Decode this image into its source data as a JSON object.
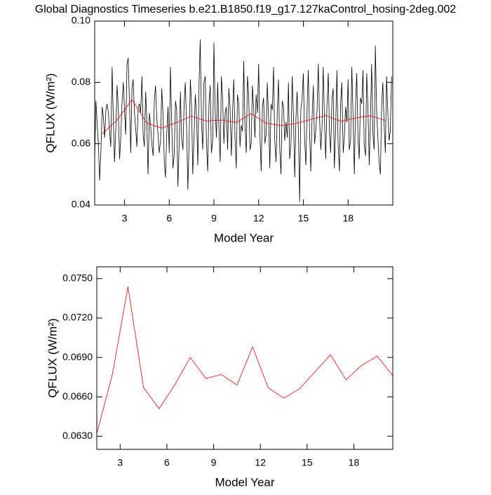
{
  "title": "Global Diagnostics Timeseries b.e21.B1850.f19_g17.127kaControl_hosing-2deg.002",
  "chart_data": [
    {
      "type": "line",
      "xlabel": "Model Year",
      "ylabel": "QFLUX (W/m²)",
      "xlim": [
        1,
        21
      ],
      "xticks": [
        3,
        6,
        9,
        12,
        15,
        18
      ],
      "ylim": [
        0.04,
        0.1
      ],
      "yticks": [
        0.04,
        0.06,
        0.08,
        {
          "value": 0.1,
          "label": "0.10"
        }
      ],
      "series": [
        {
          "color": "#000000",
          "x": [
            1.0,
            1.08,
            1.17,
            1.25,
            1.33,
            1.42,
            1.5,
            1.58,
            1.67,
            1.75,
            1.83,
            1.92,
            2.0,
            2.08,
            2.17,
            2.25,
            2.33,
            2.42,
            2.5,
            2.58,
            2.67,
            2.75,
            2.83,
            2.92,
            3.0,
            3.08,
            3.17,
            3.25,
            3.33,
            3.42,
            3.5,
            3.58,
            3.67,
            3.75,
            3.83,
            3.92,
            4.0,
            4.08,
            4.17,
            4.25,
            4.33,
            4.42,
            4.5,
            4.58,
            4.67,
            4.75,
            4.83,
            4.92,
            5.0,
            5.08,
            5.17,
            5.25,
            5.33,
            5.42,
            5.5,
            5.58,
            5.67,
            5.75,
            5.83,
            5.92,
            6.0,
            6.08,
            6.17,
            6.25,
            6.33,
            6.42,
            6.5,
            6.58,
            6.67,
            6.75,
            6.83,
            6.92,
            7.0,
            7.08,
            7.17,
            7.25,
            7.33,
            7.42,
            7.5,
            7.58,
            7.67,
            7.75,
            7.83,
            7.92,
            8.0,
            8.08,
            8.17,
            8.25,
            8.33,
            8.42,
            8.5,
            8.58,
            8.67,
            8.75,
            8.83,
            8.92,
            9.0,
            9.08,
            9.17,
            9.25,
            9.33,
            9.42,
            9.5,
            9.58,
            9.67,
            9.75,
            9.83,
            9.92,
            10.0,
            10.08,
            10.17,
            10.25,
            10.33,
            10.42,
            10.5,
            10.58,
            10.67,
            10.75,
            10.83,
            10.92,
            11.0,
            11.08,
            11.17,
            11.25,
            11.33,
            11.42,
            11.5,
            11.58,
            11.67,
            11.75,
            11.83,
            11.92,
            12.0,
            12.08,
            12.17,
            12.25,
            12.33,
            12.42,
            12.5,
            12.58,
            12.67,
            12.75,
            12.83,
            12.92,
            13.0,
            13.08,
            13.17,
            13.25,
            13.33,
            13.42,
            13.5,
            13.58,
            13.67,
            13.75,
            13.83,
            13.92,
            14.0,
            14.08,
            14.17,
            14.25,
            14.33,
            14.42,
            14.5,
            14.58,
            14.67,
            14.75,
            14.83,
            14.92,
            15.0,
            15.08,
            15.17,
            15.25,
            15.33,
            15.42,
            15.5,
            15.58,
            15.67,
            15.75,
            15.83,
            15.92,
            16.0,
            16.08,
            16.17,
            16.25,
            16.33,
            16.42,
            16.5,
            16.58,
            16.67,
            16.75,
            16.83,
            16.92,
            17.0,
            17.08,
            17.17,
            17.25,
            17.33,
            17.42,
            17.5,
            17.58,
            17.67,
            17.75,
            17.83,
            17.92,
            18.0,
            18.08,
            18.17,
            18.25,
            18.33,
            18.42,
            18.5,
            18.58,
            18.67,
            18.75,
            18.83,
            18.92,
            19.0,
            19.08,
            19.17,
            19.25,
            19.33,
            19.42,
            19.5,
            19.58,
            19.67,
            19.75,
            19.83,
            19.92,
            20.0,
            20.08,
            20.17,
            20.25,
            20.33,
            20.42,
            20.5,
            20.58,
            20.67,
            20.75,
            20.83,
            20.92
          ],
          "values": [
            0.055,
            0.074,
            0.066,
            0.06,
            0.048,
            0.058,
            0.072,
            0.069,
            0.062,
            0.071,
            0.073,
            0.07,
            0.064,
            0.059,
            0.085,
            0.068,
            0.054,
            0.065,
            0.079,
            0.072,
            0.055,
            0.062,
            0.073,
            0.08,
            0.071,
            0.063,
            0.086,
            0.088,
            0.074,
            0.057,
            0.078,
            0.081,
            0.07,
            0.065,
            0.059,
            0.072,
            0.073,
            0.07,
            0.082,
            0.063,
            0.059,
            0.077,
            0.067,
            0.05,
            0.07,
            0.066,
            0.06,
            0.056,
            0.074,
            0.079,
            0.068,
            0.063,
            0.057,
            0.061,
            0.078,
            0.07,
            0.054,
            0.049,
            0.063,
            0.072,
            0.057,
            0.085,
            0.066,
            0.052,
            0.056,
            0.074,
            0.071,
            0.046,
            0.06,
            0.077,
            0.062,
            0.058,
            0.073,
            0.08,
            0.065,
            0.045,
            0.06,
            0.081,
            0.072,
            0.05,
            0.063,
            0.076,
            0.069,
            0.053,
            0.079,
            0.094,
            0.067,
            0.058,
            0.08,
            0.082,
            0.06,
            0.051,
            0.073,
            0.079,
            0.057,
            0.061,
            0.093,
            0.071,
            0.062,
            0.08,
            0.066,
            0.054,
            0.082,
            0.075,
            0.06,
            0.07,
            0.072,
            0.058,
            0.078,
            0.072,
            0.056,
            0.07,
            0.081,
            0.061,
            0.052,
            0.076,
            0.073,
            0.059,
            0.066,
            0.064,
            0.087,
            0.066,
            0.057,
            0.082,
            0.076,
            0.058,
            0.06,
            0.079,
            0.071,
            0.062,
            0.076,
            0.07,
            0.086,
            0.064,
            0.051,
            0.072,
            0.075,
            0.06,
            0.063,
            0.08,
            0.068,
            0.052,
            0.073,
            0.071,
            0.085,
            0.061,
            0.054,
            0.07,
            0.081,
            0.058,
            0.05,
            0.074,
            0.072,
            0.061,
            0.067,
            0.062,
            0.08,
            0.055,
            0.06,
            0.082,
            0.07,
            0.049,
            0.068,
            0.077,
            0.064,
            0.041,
            0.071,
            0.075,
            0.083,
            0.062,
            0.053,
            0.071,
            0.084,
            0.063,
            0.051,
            0.068,
            0.079,
            0.06,
            0.064,
            0.071,
            0.086,
            0.069,
            0.058,
            0.065,
            0.085,
            0.067,
            0.055,
            0.072,
            0.083,
            0.064,
            0.057,
            0.075,
            0.078,
            0.052,
            0.066,
            0.084,
            0.06,
            0.051,
            0.073,
            0.08,
            0.057,
            0.062,
            0.072,
            0.067,
            0.081,
            0.058,
            0.061,
            0.085,
            0.07,
            0.05,
            0.072,
            0.083,
            0.061,
            0.055,
            0.075,
            0.073,
            0.084,
            0.06,
            0.056,
            0.083,
            0.072,
            0.053,
            0.068,
            0.086,
            0.063,
            0.058,
            0.092,
            0.07,
            0.062,
            0.054,
            0.05,
            0.072,
            0.08,
            0.066,
            0.057,
            0.082,
            0.07,
            0.061,
            0.064,
            0.082
          ]
        },
        {
          "color": "#ff0000",
          "x": [
            1.5,
            2.5,
            3.5,
            4.5,
            5.5,
            6.5,
            7.5,
            8.5,
            9.5,
            10.5,
            11.5,
            12.5,
            13.5,
            14.5,
            15.5,
            16.5,
            17.5,
            18.5,
            19.5,
            20.5
          ],
          "values": [
            0.0632,
            0.0677,
            0.0744,
            0.0667,
            0.0651,
            0.0669,
            0.069,
            0.0674,
            0.0677,
            0.0669,
            0.0698,
            0.0667,
            0.0659,
            0.0666,
            0.0679,
            0.0692,
            0.0673,
            0.0684,
            0.0691,
            0.0676
          ]
        }
      ]
    },
    {
      "type": "line",
      "xlabel": "Model Year",
      "ylabel": "QFLUX (W/m²)",
      "xlim": [
        1.5,
        20.5
      ],
      "xticks": [
        3,
        6,
        9,
        12,
        15,
        18
      ],
      "ylim": [
        0.062,
        0.0759
      ],
      "yticks": [
        {
          "value": 0.063,
          "label": "0.0630"
        },
        {
          "value": 0.066,
          "label": "0.0660"
        },
        {
          "value": 0.069,
          "label": "0.0690"
        },
        {
          "value": 0.072,
          "label": "0.0720"
        },
        {
          "value": 0.075,
          "label": "0.0750"
        }
      ],
      "series": [
        {
          "color": "#ff0000",
          "x": [
            1.5,
            2.5,
            3.5,
            4.5,
            5.5,
            6.5,
            7.5,
            8.5,
            9.5,
            10.5,
            11.5,
            12.5,
            13.5,
            14.5,
            15.5,
            16.5,
            17.5,
            18.5,
            19.5,
            20.5
          ],
          "values": [
            0.0632,
            0.0677,
            0.0744,
            0.0667,
            0.0651,
            0.0669,
            0.069,
            0.0674,
            0.0677,
            0.0669,
            0.0698,
            0.0667,
            0.0659,
            0.0666,
            0.0679,
            0.0692,
            0.0673,
            0.0684,
            0.0691,
            0.0676
          ]
        }
      ]
    }
  ]
}
